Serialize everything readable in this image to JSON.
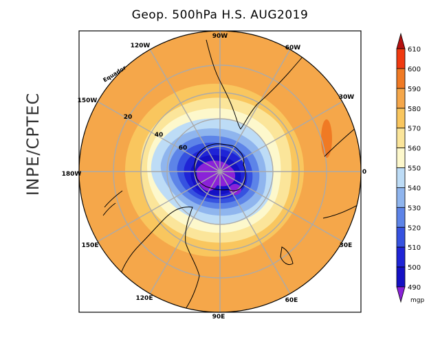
{
  "title": "Geop. 500hPa H.S. AUG2019",
  "credit": "INPE/CPTEC",
  "map": {
    "projection": "polar stereographic, south pole",
    "longitude_labels": [
      "90W",
      "60W",
      "30W",
      "0",
      "30E",
      "60E",
      "90E",
      "120E",
      "150E",
      "180W",
      "150W",
      "120W"
    ],
    "latitude_labels": [
      "20",
      "40",
      "60"
    ],
    "equator_label": "Equador"
  },
  "legend": {
    "unit": "mgp",
    "levels": [
      "610",
      "600",
      "590",
      "580",
      "570",
      "560",
      "550",
      "540",
      "530",
      "520",
      "510",
      "500",
      "490"
    ],
    "colors": [
      "#b51111",
      "#f03a10",
      "#f07a24",
      "#f5a74a",
      "#f9c65e",
      "#fbe59a",
      "#fdf8cc",
      "#bddcf6",
      "#8fb5ee",
      "#5d84e8",
      "#3652e0",
      "#1f24d6",
      "#1410c4",
      "#8a22d8"
    ]
  }
}
